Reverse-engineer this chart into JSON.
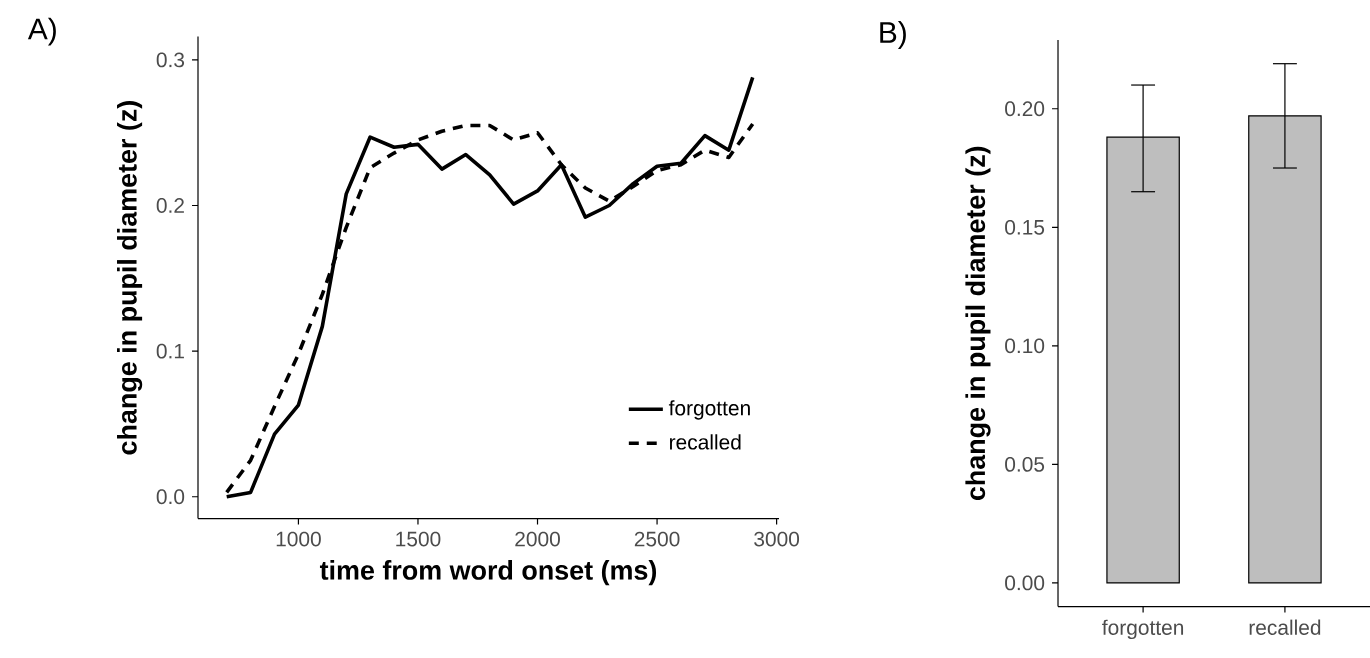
{
  "chart_data": [
    {
      "type": "line",
      "title": "A)",
      "xlabel": "time from word onset (ms)",
      "ylabel": "change in pupil diameter (z)",
      "x": [
        700,
        800,
        900,
        1000,
        1100,
        1200,
        1300,
        1400,
        1500,
        1600,
        1700,
        1800,
        1900,
        2000,
        2100,
        2200,
        2300,
        2400,
        2500,
        2600,
        2700,
        2800,
        2900
      ],
      "series": [
        {
          "name": "forgotten",
          "color": "#000000",
          "line_style": "solid",
          "values": [
            0.0,
            0.003,
            0.043,
            0.063,
            0.117,
            0.208,
            0.247,
            0.24,
            0.242,
            0.225,
            0.235,
            0.221,
            0.201,
            0.21,
            0.228,
            0.192,
            0.2,
            0.215,
            0.227,
            0.229,
            0.248,
            0.238,
            0.288
          ]
        },
        {
          "name": "recalled",
          "color": "#000000",
          "line_style": "dashed",
          "values": [
            0.003,
            0.025,
            0.062,
            0.098,
            0.139,
            0.185,
            0.226,
            0.236,
            0.245,
            0.251,
            0.255,
            0.255,
            0.245,
            0.25,
            0.228,
            0.212,
            0.203,
            0.213,
            0.224,
            0.228,
            0.238,
            0.233,
            0.256
          ]
        }
      ],
      "xlim": [
        580,
        3010
      ],
      "ylim": [
        -0.015,
        0.316
      ],
      "xticks": [
        1000,
        1500,
        2000,
        2500,
        3000
      ],
      "yticks": [
        {
          "value": 0,
          "label": "0.0"
        },
        0.1,
        0.2,
        0.3
      ],
      "marker": "none",
      "legend": "bottom right"
    },
    {
      "type": "bar",
      "title": "B)",
      "ylabel": "change in pupil diameter (z)",
      "categories": [
        "forgotten",
        "recalled"
      ],
      "values": [
        0.188,
        0.197
      ],
      "color": "#bebebe",
      "errors": [
        [
          0.165,
          0.21
        ],
        [
          0.175,
          0.219
        ]
      ],
      "ylim": [
        -0.01,
        0.229
      ],
      "yticks": [
        {
          "value": 0,
          "label": "0.00"
        },
        {
          "value": 0.05,
          "label": "0.05"
        },
        {
          "value": 0.1,
          "label": "0.10"
        },
        {
          "value": 0.15,
          "label": "0.15"
        },
        {
          "value": 0.2,
          "label": "0.20"
        }
      ]
    }
  ]
}
